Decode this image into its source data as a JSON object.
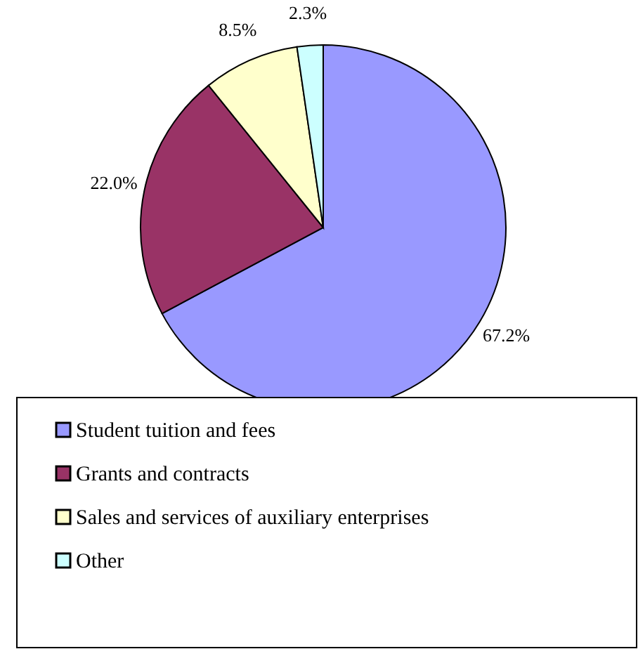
{
  "chart_data": {
    "type": "pie",
    "categories": [
      "Student tuition and fees",
      "Grants and contracts",
      "Sales and services of auxiliary enterprises",
      "Other"
    ],
    "values": [
      67.2,
      22.0,
      8.5,
      2.3
    ],
    "value_labels": [
      "67.2%",
      "22.0%",
      "8.5%",
      "2.3%"
    ],
    "colors": [
      "#9999ff",
      "#993366",
      "#ffffcc",
      "#ccffff"
    ],
    "legend": "bottom"
  }
}
